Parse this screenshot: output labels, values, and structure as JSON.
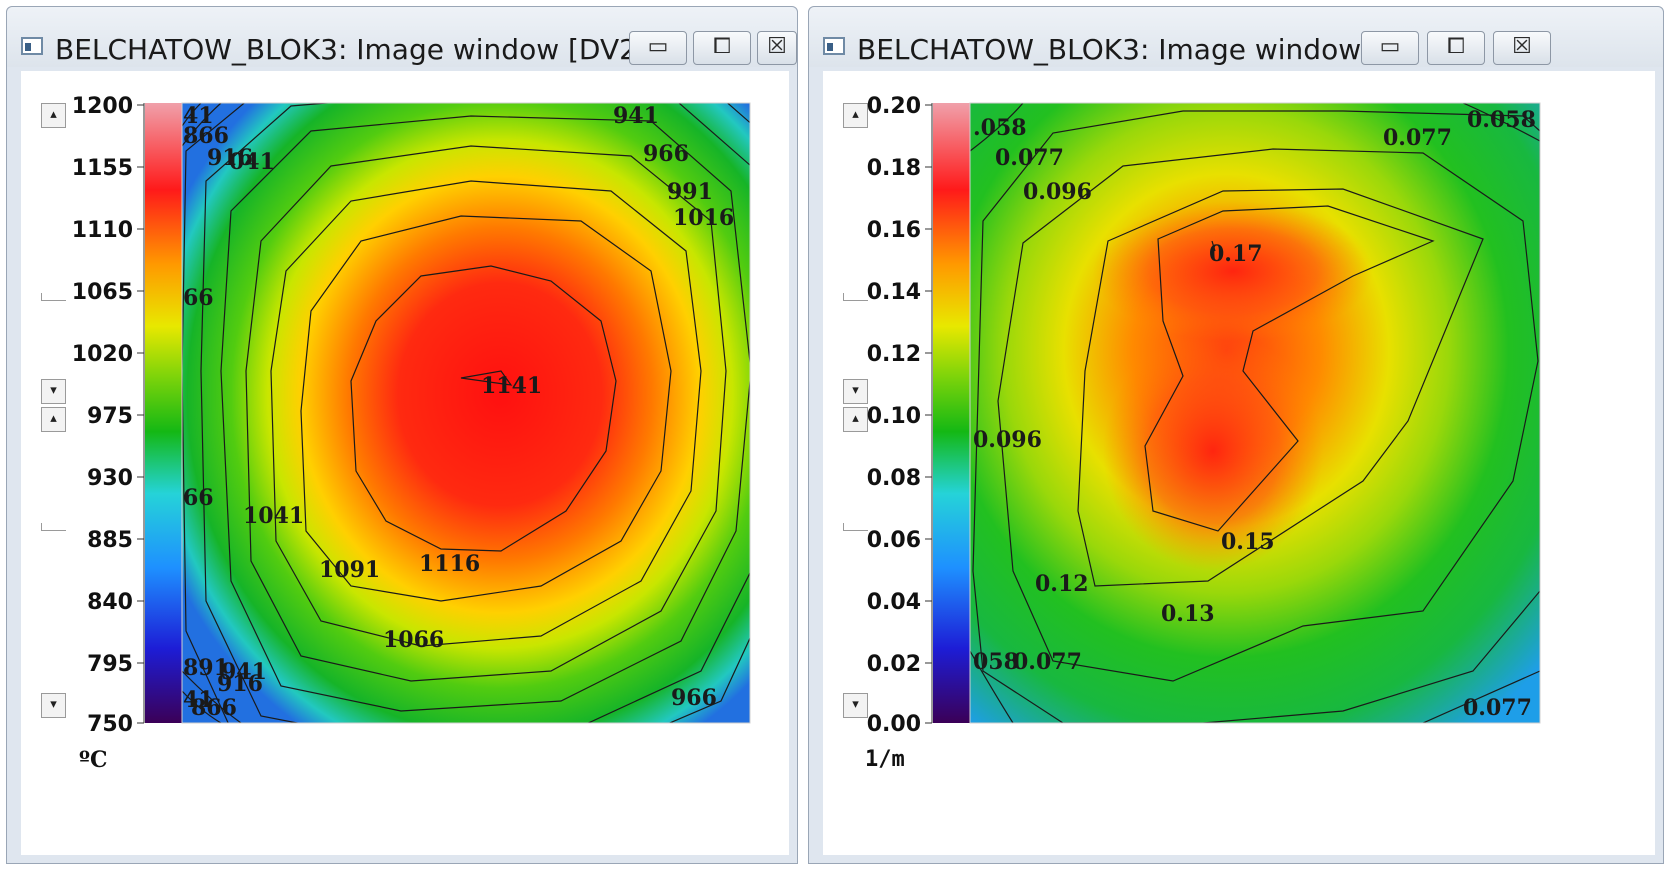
{
  "windows": [
    {
      "title": "BELCHATOW_BLOK3: Image window [DV2...",
      "buttons": {
        "minimize": "▭",
        "maximize": "⧠",
        "close": "☒"
      },
      "colorbar_ticks": [
        "1200",
        "1155",
        "1110",
        "1065",
        "1020",
        "975",
        "930",
        "885",
        "840",
        "795",
        "750"
      ],
      "unit": "ºC",
      "contour_labels": [
        "41",
        "866",
        "916",
        "041",
        "941",
        "966",
        "991",
        "1016",
        "66",
        "66",
        "1041",
        "1091",
        "1116",
        "1141",
        "1066",
        "891",
        "941",
        "916",
        "41",
        "866",
        "966"
      ]
    },
    {
      "title": "BELCHATOW_BLOK3: Image window ...",
      "buttons": {
        "minimize": "▭",
        "maximize": "⧠",
        "close": "☒"
      },
      "colorbar_ticks": [
        "0.20",
        "0.18",
        "0.16",
        "0.14",
        "0.12",
        "0.10",
        "0.08",
        "0.06",
        "0.04",
        "0.02",
        "0.00"
      ],
      "unit": "1/m",
      "contour_labels": [
        ".058",
        "0.077",
        "0.096",
        "0.077",
        "0.058",
        "0.17",
        "0.096",
        "0.15",
        "0.12",
        "0.13",
        "058",
        "0.077",
        "0.077"
      ]
    }
  ],
  "colormap": [
    "#3b0057",
    "#1d1dd6",
    "#1e90ff",
    "#25d3d8",
    "#14b814",
    "#7fd40a",
    "#e8e800",
    "#ff9900",
    "#ff1a1a",
    "#e8737c"
  ]
}
